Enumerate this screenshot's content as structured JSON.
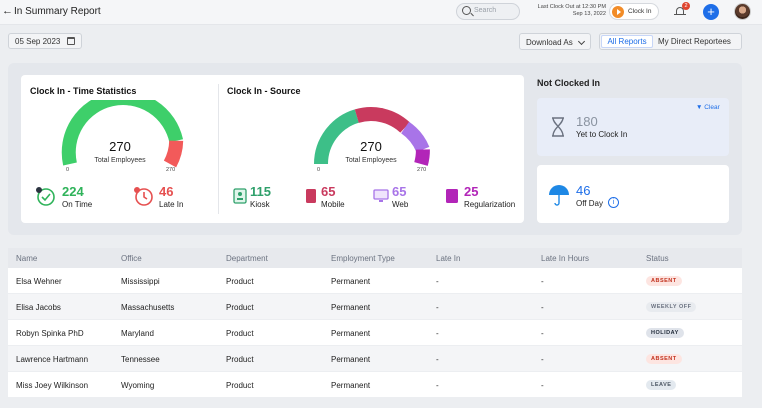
{
  "header": {
    "title": "In Summary Report",
    "search_placeholder": "Search",
    "last_clock_out_line1": "Last Clock Out at 12:30 PM",
    "last_clock_out_line2": "Sep 13, 2022",
    "clock_in_label": "Clock In",
    "notification_count": "2"
  },
  "toolbar": {
    "date": "05 Sep 2023",
    "download_label": "Download As",
    "tab_all": "All Reports",
    "tab_direct": "My Direct Reportees"
  },
  "time_stats": {
    "title": "Clock In - Time Statistics",
    "total": "270",
    "total_label": "Total Employees",
    "min": "0",
    "max": "270",
    "on_time_value": "224",
    "on_time_label": "On Time",
    "late_value": "46",
    "late_label": "Late In",
    "colors": {
      "on_time": "#3ecf6a",
      "late": "#f25a5a"
    }
  },
  "source": {
    "title": "Clock In - Source",
    "total": "270",
    "total_label": "Total Employees",
    "min": "0",
    "max": "270",
    "kiosk_value": "115",
    "kiosk_label": "Kiosk",
    "mobile_value": "65",
    "mobile_label": "Mobile",
    "web_value": "65",
    "web_label": "Web",
    "reg_value": "25",
    "reg_label": "Regularization",
    "colors": {
      "kiosk": "#3dbf88",
      "mobile": "#c93a5e",
      "web": "#a874e8",
      "reg": "#b225b8"
    }
  },
  "not_clocked": {
    "title": "Not Clocked In",
    "clear_label": "Clear",
    "yet_value": "180",
    "yet_label": "Yet to Clock In",
    "off_value": "46",
    "off_label": "Off Day"
  },
  "table": {
    "headers": [
      "Name",
      "Office",
      "Department",
      "Employment Type",
      "Late In",
      "Late In Hours",
      "Status"
    ],
    "rows": [
      [
        "Elsa Wehner",
        "Mississippi",
        "Product",
        "Permanent",
        "-",
        "-",
        "ABSENT"
      ],
      [
        "Elisa Jacobs",
        "Massachusetts",
        "Product",
        "Permanent",
        "-",
        "-",
        "WEEKLY OFF"
      ],
      [
        "Robyn Spinka PhD",
        "Maryland",
        "Product",
        "Permanent",
        "-",
        "-",
        "HOLIDAY"
      ],
      [
        "Lawrence Hartmann",
        "Tennessee",
        "Product",
        "Permanent",
        "-",
        "-",
        "ABSENT"
      ],
      [
        "Miss Joey Wilkinson",
        "Wyoming",
        "Product",
        "Permanent",
        "-",
        "-",
        "LEAVE"
      ]
    ]
  }
}
